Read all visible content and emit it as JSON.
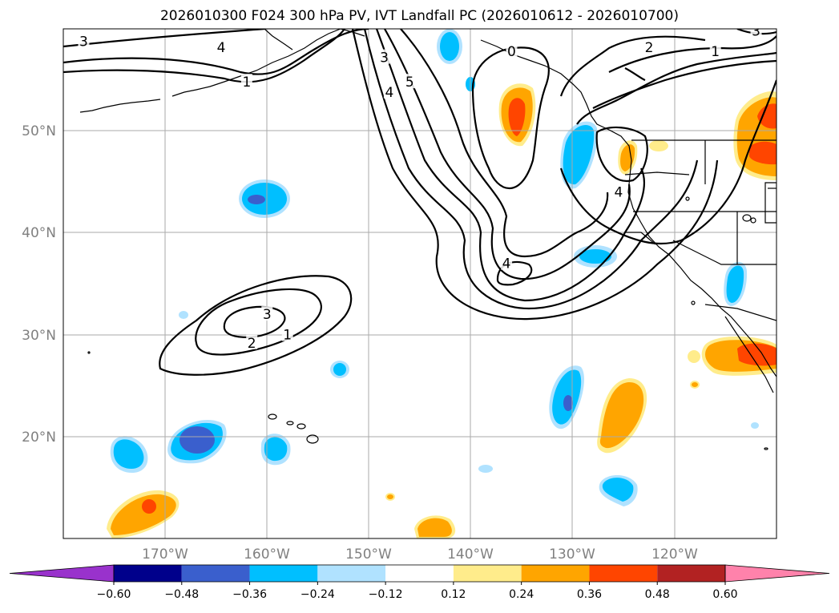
{
  "title": "2026010300 F024 300 hPa PV, IVT Landfall PC (2026010612 - 2026010700)",
  "map": {
    "lat_ticks": [
      {
        "value": 50,
        "label": "50°N"
      },
      {
        "value": 40,
        "label": "40°N"
      },
      {
        "value": 30,
        "label": "30°N"
      },
      {
        "value": 20,
        "label": "20°N"
      }
    ],
    "lon_ticks": [
      {
        "value": -170,
        "label": "170°W"
      },
      {
        "value": -160,
        "label": "160°W"
      },
      {
        "value": -150,
        "label": "150°W"
      },
      {
        "value": -140,
        "label": "140°W"
      },
      {
        "value": -130,
        "label": "130°W"
      },
      {
        "value": -120,
        "label": "120°W"
      }
    ],
    "extent": {
      "lon_min": -180,
      "lon_max": -110,
      "lat_min": 10,
      "lat_max": 60
    },
    "contour_labels": [
      {
        "text": "3",
        "lon": -178,
        "lat": 58.8
      },
      {
        "text": "4",
        "lon": -164.5,
        "lat": 58.2
      },
      {
        "text": "1",
        "lon": -162,
        "lat": 54.8
      },
      {
        "text": "3",
        "lon": -148.5,
        "lat": 57.2
      },
      {
        "text": "5",
        "lon": -146,
        "lat": 54.8
      },
      {
        "text": "4",
        "lon": -148,
        "lat": 53.8
      },
      {
        "text": "0",
        "lon": -136,
        "lat": 57.8
      },
      {
        "text": "2",
        "lon": -122.5,
        "lat": 58.2
      },
      {
        "text": "1",
        "lon": -116,
        "lat": 57.8
      },
      {
        "text": "3",
        "lon": -112,
        "lat": 59.8
      },
      {
        "text": "4",
        "lon": -125.5,
        "lat": 44
      },
      {
        "text": "4",
        "lon": -136.5,
        "lat": 37
      },
      {
        "text": "3",
        "lon": -160,
        "lat": 32
      },
      {
        "text": "2",
        "lon": -161.5,
        "lat": 29.2
      },
      {
        "text": "1",
        "lon": -158,
        "lat": 30
      }
    ]
  },
  "colorbar": {
    "ticks": [
      "−0.60",
      "−0.48",
      "−0.36",
      "−0.24",
      "−0.12",
      "0.12",
      "0.24",
      "0.36",
      "0.48",
      "0.60"
    ],
    "colors": [
      "#9932CC",
      "#00008B",
      "#3A5FCD",
      "#00BFFF",
      "#B0E2FF",
      "#FFFFFF",
      "#FFEC8B",
      "#FFA500",
      "#FF4500",
      "#B22222",
      "#FF82AB"
    ]
  }
}
